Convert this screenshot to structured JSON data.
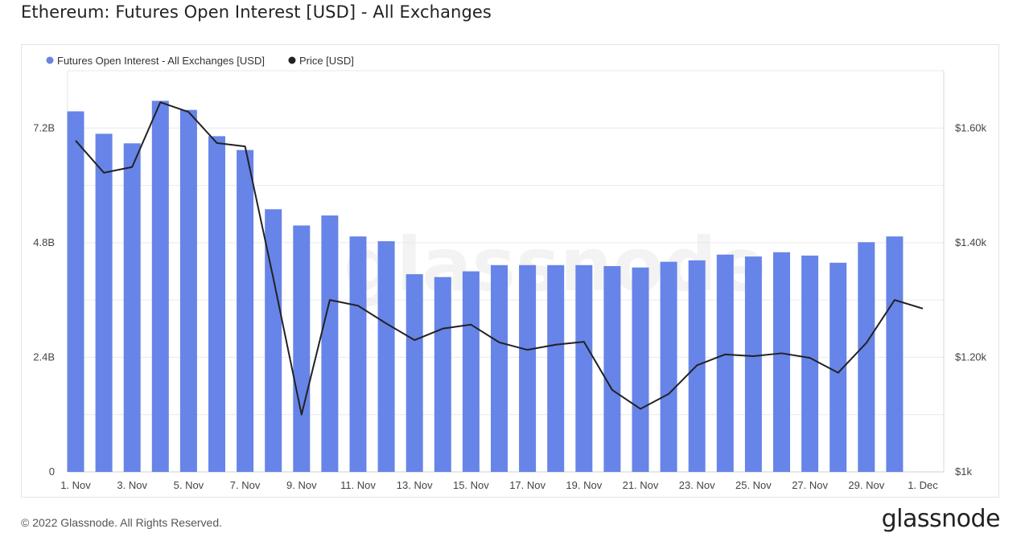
{
  "page": {
    "title": "Ethereum: Futures Open Interest [USD] - All Exchanges",
    "copyright": "© 2022 Glassnode. All Rights Reserved.",
    "brand": "glassnode",
    "watermark": "glassnode"
  },
  "chart_data": {
    "type": "bar",
    "title": "Ethereum: Futures Open Interest [USD] - All Exchanges",
    "legend_position": "top-left",
    "grid": true,
    "series": [
      {
        "name": "Futures Open Interest - All Exchanges [USD]",
        "type": "bar",
        "axis": "left",
        "color": "#6784e8",
        "legend_color": "#6b83e0",
        "values": [
          7.55,
          7.08,
          6.88,
          7.77,
          7.58,
          7.03,
          6.74,
          5.5,
          5.16,
          5.37,
          4.93,
          4.83,
          4.14,
          4.08,
          4.2,
          4.33,
          4.33,
          4.33,
          4.33,
          4.31,
          4.28,
          4.4,
          4.43,
          4.55,
          4.51,
          4.6,
          4.53,
          4.38,
          4.81,
          4.93,
          null
        ]
      },
      {
        "name": "Price [USD]",
        "type": "line",
        "axis": "right",
        "color": "#222222",
        "legend_color": "#222222",
        "values": [
          1578,
          1522,
          1532,
          1645,
          1628,
          1574,
          1568,
          1338,
          1100,
          1300,
          1290,
          1259,
          1230,
          1250,
          1257,
          1226,
          1213,
          1222,
          1227,
          1143,
          1110,
          1136,
          1186,
          1205,
          1202,
          1207,
          1199,
          1173,
          1225,
          1300,
          1285
        ]
      }
    ],
    "categories": [
      "1. Nov",
      "2. Nov",
      "3. Nov",
      "4. Nov",
      "5. Nov",
      "6. Nov",
      "7. Nov",
      "8. Nov",
      "9. Nov",
      "10. Nov",
      "11. Nov",
      "12. Nov",
      "13. Nov",
      "14. Nov",
      "15. Nov",
      "16. Nov",
      "17. Nov",
      "18. Nov",
      "19. Nov",
      "20. Nov",
      "21. Nov",
      "22. Nov",
      "23. Nov",
      "24. Nov",
      "25. Nov",
      "26. Nov",
      "27. Nov",
      "28. Nov",
      "29. Nov",
      "30. Nov",
      "1. Dec"
    ],
    "x_tick_labels": [
      "1. Nov",
      "3. Nov",
      "5. Nov",
      "7. Nov",
      "9. Nov",
      "11. Nov",
      "13. Nov",
      "15. Nov",
      "17. Nov",
      "19. Nov",
      "21. Nov",
      "23. Nov",
      "25. Nov",
      "27. Nov",
      "29. Nov",
      "1. Dec"
    ],
    "y_left": {
      "unit": "B",
      "ylim": [
        0,
        8.4
      ],
      "ticks": [
        0,
        2.4,
        4.8,
        7.2
      ],
      "tick_labels": [
        "0",
        "2.4B",
        "4.8B",
        "7.2B"
      ]
    },
    "y_right": {
      "ylim": [
        1000,
        1700
      ],
      "ticks": [
        1000,
        1200,
        1400,
        1600
      ],
      "tick_labels": [
        "$1k",
        "$1.20k",
        "$1.40k",
        "$1.60k"
      ]
    }
  }
}
